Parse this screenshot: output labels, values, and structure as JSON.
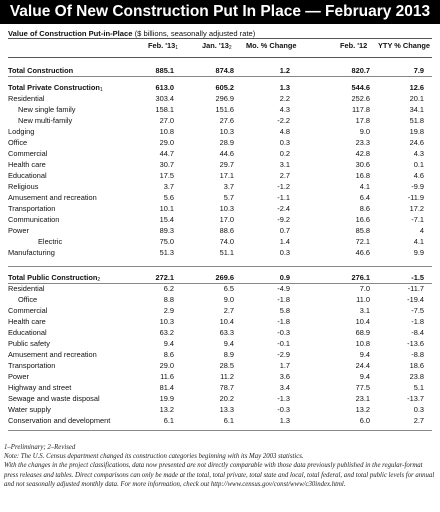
{
  "title": "Value Of New Construction Put In Place — February 2013",
  "subtitle": {
    "bold": "Value of Construction Put-in-Place",
    "rest": " ($ billions, seasonally adjusted rate)"
  },
  "columns": [
    {
      "label": "Feb. '13",
      "sub": "1"
    },
    {
      "label": "Jan. '13",
      "sub": "2"
    },
    {
      "label": "Mo. % Change",
      "sub": ""
    },
    {
      "label": "Feb. '12",
      "sub": ""
    },
    {
      "label": "YTY % Change",
      "sub": ""
    }
  ],
  "rows": [
    {
      "label": "Total Construction",
      "sub": "",
      "v": [
        "885.1",
        "874.8",
        "1.2",
        "820.7",
        "7.9"
      ]
    },
    {
      "label": "Total Private Construction",
      "sub": "1",
      "v": [
        "613.0",
        "605.2",
        "1.3",
        "544.6",
        "12.6"
      ]
    },
    {
      "label": "Residential",
      "sub": "",
      "v": [
        "303.4",
        "296.9",
        "2.2",
        "252.6",
        "20.1"
      ]
    },
    {
      "label": "New single family",
      "sub": "",
      "v": [
        "158.1",
        "151.6",
        "4.3",
        "117.8",
        "34.1"
      ]
    },
    {
      "label": "New multi-family",
      "sub": "",
      "v": [
        "27.0",
        "27.6",
        "-2.2",
        "17.8",
        "51.8"
      ]
    },
    {
      "label": "Lodging",
      "sub": "",
      "v": [
        "10.8",
        "10.3",
        "4.8",
        "9.0",
        "19.8"
      ]
    },
    {
      "label": "Office",
      "sub": "",
      "v": [
        "29.0",
        "28.9",
        "0.3",
        "23.3",
        "24.6"
      ]
    },
    {
      "label": "Commercial",
      "sub": "",
      "v": [
        "44.7",
        "44.6",
        "0.2",
        "42.8",
        "4.3"
      ]
    },
    {
      "label": "Health care",
      "sub": "",
      "v": [
        "30.7",
        "29.7",
        "3.1",
        "30.6",
        "0.1"
      ]
    },
    {
      "label": "Educational",
      "sub": "",
      "v": [
        "17.5",
        "17.1",
        "2.7",
        "16.8",
        "4.6"
      ]
    },
    {
      "label": "Religious",
      "sub": "",
      "v": [
        "3.7",
        "3.7",
        "-1.2",
        "4.1",
        "-9.9"
      ]
    },
    {
      "label": "Amusement and recreation",
      "sub": "",
      "v": [
        "5.6",
        "5.7",
        "-1.1",
        "6.4",
        "-11.9"
      ]
    },
    {
      "label": "Transportation",
      "sub": "",
      "v": [
        "10.1",
        "10.3",
        "-2.4",
        "8.6",
        "17.2"
      ]
    },
    {
      "label": "Communication",
      "sub": "",
      "v": [
        "15.4",
        "17.0",
        "-9.2",
        "16.6",
        "-7.1"
      ]
    },
    {
      "label": "Power",
      "sub": "",
      "v": [
        "89.3",
        "88.6",
        "0.7",
        "85.8",
        "4"
      ]
    },
    {
      "label": "Electric",
      "sub": "",
      "v": [
        "75.0",
        "74.0",
        "1.4",
        "72.1",
        "4.1"
      ]
    },
    {
      "label": "Manufacturing",
      "sub": "",
      "v": [
        "51.3",
        "51.1",
        "0.3",
        "46.6",
        "9.9"
      ]
    },
    {
      "label": "Total Public Construction",
      "sub": "2",
      "v": [
        "272.1",
        "269.6",
        "0.9",
        "276.1",
        "-1.5"
      ]
    },
    {
      "label": "Residential",
      "sub": "",
      "v": [
        "6.2",
        "6.5",
        "-4.9",
        "7.0",
        "-11.7"
      ]
    },
    {
      "label": "Office",
      "sub": "",
      "v": [
        "8.8",
        "9.0",
        "-1.8",
        "11.0",
        "-19.4"
      ]
    },
    {
      "label": "Commercial",
      "sub": "",
      "v": [
        "2.9",
        "2.7",
        "5.8",
        "3.1",
        "-7.5"
      ]
    },
    {
      "label": "Health care",
      "sub": "",
      "v": [
        "10.3",
        "10.4",
        "-1.8",
        "10.4",
        "-1.8"
      ]
    },
    {
      "label": "Educational",
      "sub": "",
      "v": [
        "63.2",
        "63.3",
        "-0.3",
        "68.9",
        "-8.4"
      ]
    },
    {
      "label": "Public safety",
      "sub": "",
      "v": [
        "9.4",
        "9.4",
        "-0.1",
        "10.8",
        "-13.6"
      ]
    },
    {
      "label": "Amusement and recreation",
      "sub": "",
      "v": [
        "8.6",
        "8.9",
        "-2.9",
        "9.4",
        "-8.8"
      ]
    },
    {
      "label": "Transportation",
      "sub": "",
      "v": [
        "29.0",
        "28.5",
        "1.7",
        "24.4",
        "18.6"
      ]
    },
    {
      "label": "Power",
      "sub": "",
      "v": [
        "11.6",
        "11.2",
        "3.6",
        "9.4",
        "23.8"
      ]
    },
    {
      "label": "Highway and street",
      "sub": "",
      "v": [
        "81.4",
        "78.7",
        "3.4",
        "77.5",
        "5.1"
      ]
    },
    {
      "label": "Sewage and waste disposal",
      "sub": "",
      "v": [
        "19.9",
        "20.2",
        "-1.3",
        "23.1",
        "-13.7"
      ]
    },
    {
      "label": "Water supply",
      "sub": "",
      "v": [
        "13.2",
        "13.3",
        "-0.3",
        "13.2",
        "0.3"
      ]
    },
    {
      "label": "Conservation and development",
      "sub": "",
      "v": [
        "6.1",
        "6.1",
        "1.3",
        "6.0",
        "2.7"
      ]
    }
  ],
  "footnotes": [
    "1–Preliminary; 2–Revised",
    "Note: The U.S. Census department changed its construction categories beginning with its May 2003 statistics.",
    "With the changes in the project classifications, data now presented are not directly comparable with those data previously published in the regular-format press releases and tables. Direct comparisons can only be made at the total, total private, total state and local, total federal, and total public levels for annual and not seasonally adjusted monthly data. For more information, check out http://www.census.gov/const/www/c30index.html."
  ]
}
